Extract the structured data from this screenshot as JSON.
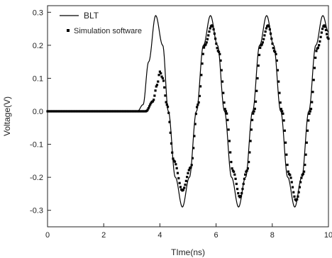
{
  "chart_data": {
    "type": "line",
    "xlabel": "TIme(ns)",
    "ylabel": "Voltage(V)",
    "xlim": [
      0,
      10
    ],
    "ylim": [
      -0.35,
      0.32
    ],
    "x_ticks": [
      0,
      2,
      4,
      6,
      8,
      10
    ],
    "x_tick_labels": [
      "0",
      "2",
      "4",
      "6",
      "8",
      "10"
    ],
    "y_ticks": [
      -0.3,
      -0.2,
      -0.1,
      0.0,
      0.1,
      0.2,
      0.3
    ],
    "y_tick_labels": [
      "-0.3",
      "-0.2",
      "-0.1",
      "0.0",
      "0.1",
      "0.2",
      "0.3"
    ],
    "grid": false,
    "legend_position": "top-left",
    "series": [
      {
        "name": "BLT",
        "style": "solid line",
        "color": "#000000",
        "points": [
          [
            0,
            0
          ],
          [
            3.2,
            0
          ],
          [
            3.4,
            0.02
          ],
          [
            3.6,
            0.15
          ],
          [
            3.85,
            0.29
          ],
          [
            4.1,
            0.2
          ],
          [
            4.3,
            0
          ],
          [
            4.55,
            -0.2
          ],
          [
            4.8,
            -0.29
          ],
          [
            5.05,
            -0.2
          ],
          [
            5.3,
            0
          ],
          [
            5.55,
            0.2
          ],
          [
            5.8,
            0.29
          ],
          [
            6.05,
            0.2
          ],
          [
            6.3,
            0
          ],
          [
            6.55,
            -0.2
          ],
          [
            6.8,
            -0.29
          ],
          [
            7.05,
            -0.2
          ],
          [
            7.3,
            0
          ],
          [
            7.55,
            0.2
          ],
          [
            7.8,
            0.29
          ],
          [
            8.05,
            0.2
          ],
          [
            8.3,
            0
          ],
          [
            8.55,
            -0.2
          ],
          [
            8.8,
            -0.29
          ],
          [
            9.05,
            -0.2
          ],
          [
            9.3,
            0
          ],
          [
            9.55,
            0.2
          ],
          [
            9.8,
            0.29
          ],
          [
            10,
            0.24
          ]
        ]
      },
      {
        "name": "Simulation software",
        "style": "dotted markers",
        "color": "#000000",
        "points": [
          [
            0,
            0
          ],
          [
            3.5,
            0
          ],
          [
            3.75,
            0.03
          ],
          [
            3.9,
            0.08
          ],
          [
            4.0,
            0.12
          ],
          [
            4.1,
            0.1
          ],
          [
            4.25,
            0.02
          ],
          [
            4.5,
            -0.15
          ],
          [
            4.8,
            -0.24
          ],
          [
            5.1,
            -0.17
          ],
          [
            5.35,
            0.02
          ],
          [
            5.6,
            0.2
          ],
          [
            5.85,
            0.26
          ],
          [
            6.1,
            0.18
          ],
          [
            6.35,
            0
          ],
          [
            6.6,
            -0.18
          ],
          [
            6.85,
            -0.26
          ],
          [
            7.1,
            -0.18
          ],
          [
            7.35,
            0
          ],
          [
            7.6,
            0.2
          ],
          [
            7.85,
            0.26
          ],
          [
            8.1,
            0.18
          ],
          [
            8.35,
            0
          ],
          [
            8.6,
            -0.19
          ],
          [
            8.85,
            -0.27
          ],
          [
            9.1,
            -0.19
          ],
          [
            9.35,
            0
          ],
          [
            9.6,
            0.19
          ],
          [
            9.85,
            0.26
          ],
          [
            10,
            0.22
          ]
        ]
      }
    ]
  }
}
